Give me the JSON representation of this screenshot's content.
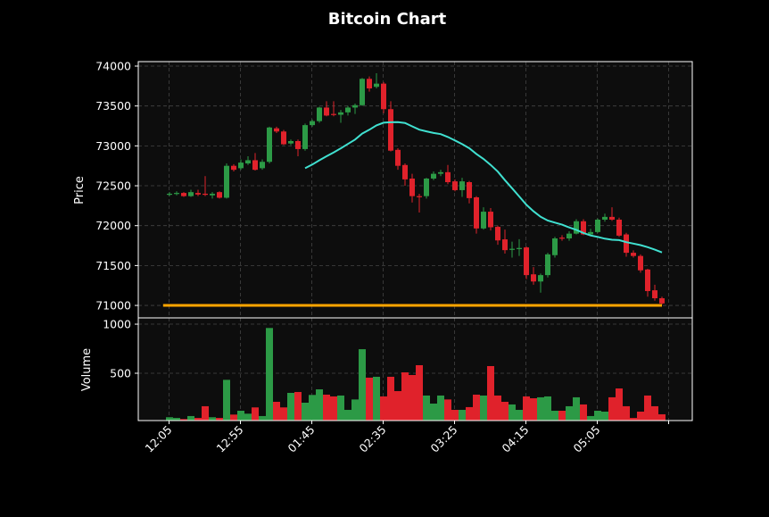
{
  "chart_data": {
    "type": "candlestick",
    "title": "Bitcoin Chart",
    "colors": {
      "up": "#2c9a46",
      "down": "#e0222b",
      "moving_average": "#40e0d0",
      "level_line": "#ffa500",
      "panel_bg": "#0d0d0d",
      "grid": "#444444"
    },
    "price_panel": {
      "ylabel": "Price",
      "ylim": [
        70844,
        74056
      ],
      "yticks": [
        71000,
        71500,
        72000,
        72500,
        73000,
        73500,
        74000
      ],
      "grid": true
    },
    "volume_panel": {
      "ylabel": "Volume",
      "ylim": [
        18,
        1064
      ],
      "yticks": [
        500,
        1000
      ],
      "grid": true
    },
    "x_tick_labels": [
      "12:05",
      "12:55",
      "01:45",
      "02:35",
      "03:25",
      "04:15",
      "05:05",
      ""
    ],
    "moving_average": {
      "period": 20
    },
    "level_line": 71000,
    "candles": [
      [
        72390,
        72420,
        72370,
        72400,
        52
      ],
      [
        72400,
        72430,
        72380,
        72410,
        45
      ],
      [
        72410,
        72420,
        72360,
        72370,
        33
      ],
      [
        72370,
        72450,
        72360,
        72420,
        64
      ],
      [
        72410,
        72450,
        72370,
        72390,
        45
      ],
      [
        72400,
        72620,
        72370,
        72390,
        164
      ],
      [
        72380,
        72420,
        72340,
        72400,
        52
      ],
      [
        72420,
        72430,
        72340,
        72350,
        45
      ],
      [
        72350,
        72780,
        72340,
        72750,
        433
      ],
      [
        72750,
        72770,
        72680,
        72700,
        79
      ],
      [
        72720,
        72830,
        72700,
        72790,
        118
      ],
      [
        72780,
        72870,
        72760,
        72820,
        88
      ],
      [
        72820,
        72910,
        72690,
        72700,
        152
      ],
      [
        72720,
        72830,
        72700,
        72800,
        64
      ],
      [
        72800,
        73240,
        72780,
        73230,
        961
      ],
      [
        73220,
        73240,
        73160,
        73180,
        209
      ],
      [
        73180,
        73200,
        73010,
        73020,
        152
      ],
      [
        73030,
        73080,
        73010,
        73060,
        300
      ],
      [
        73060,
        73080,
        72870,
        72960,
        309
      ],
      [
        72960,
        73280,
        72940,
        73260,
        200
      ],
      [
        73260,
        73330,
        73240,
        73310,
        279
      ],
      [
        73310,
        73490,
        73290,
        73480,
        336
      ],
      [
        73480,
        73560,
        73370,
        73380,
        282
      ],
      [
        73400,
        73560,
        73370,
        73390,
        264
      ],
      [
        73390,
        73450,
        73290,
        73420,
        273
      ],
      [
        73420,
        73500,
        73380,
        73480,
        127
      ],
      [
        73480,
        73530,
        73400,
        73510,
        233
      ],
      [
        73510,
        73850,
        73500,
        73840,
        745
      ],
      [
        73840,
        73870,
        73680,
        73720,
        455
      ],
      [
        73740,
        73910,
        73720,
        73780,
        464
      ],
      [
        73780,
        73800,
        73410,
        73460,
        264
      ],
      [
        73460,
        73560,
        72930,
        72940,
        464
      ],
      [
        72950,
        72970,
        72700,
        72750,
        318
      ],
      [
        72760,
        72780,
        72500,
        72580,
        509
      ],
      [
        72590,
        72650,
        72290,
        72370,
        482
      ],
      [
        72370,
        72400,
        72165,
        72360,
        582
      ],
      [
        72370,
        72600,
        72340,
        72590,
        273
      ],
      [
        72590,
        72680,
        72570,
        72650,
        191
      ],
      [
        72650,
        72700,
        72620,
        72670,
        273
      ],
      [
        72670,
        72760,
        72520,
        72545,
        233
      ],
      [
        72555,
        72580,
        72430,
        72445,
        127
      ],
      [
        72445,
        72600,
        72360,
        72555,
        127
      ],
      [
        72545,
        72560,
        72280,
        72345,
        155
      ],
      [
        72355,
        72370,
        71900,
        71965,
        282
      ],
      [
        71965,
        72230,
        71950,
        72175,
        273
      ],
      [
        72175,
        72220,
        71940,
        71980,
        573
      ],
      [
        71985,
        72000,
        71760,
        71815,
        273
      ],
      [
        71828,
        71950,
        71650,
        71693,
        209
      ],
      [
        71700,
        71800,
        71600,
        71710,
        182
      ],
      [
        71710,
        71830,
        71620,
        71720,
        127
      ],
      [
        71727,
        71740,
        71330,
        71380,
        264
      ],
      [
        71390,
        71480,
        71260,
        71300,
        245
      ],
      [
        71300,
        71400,
        71160,
        71380,
        255
      ],
      [
        71380,
        71660,
        71350,
        71640,
        264
      ],
      [
        71630,
        71860,
        71600,
        71840,
        118
      ],
      [
        71850,
        71880,
        71810,
        71840,
        118
      ],
      [
        71840,
        71930,
        71810,
        71900,
        164
      ],
      [
        71900,
        72080,
        71890,
        72055,
        255
      ],
      [
        72055,
        72080,
        71880,
        71890,
        182
      ],
      [
        71890,
        71960,
        71870,
        71920,
        64
      ],
      [
        71920,
        72090,
        71910,
        72075,
        118
      ],
      [
        72075,
        72150,
        72050,
        72110,
        109
      ],
      [
        72110,
        72230,
        72060,
        72075,
        255
      ],
      [
        72075,
        72100,
        71860,
        71875,
        345
      ],
      [
        71890,
        71910,
        71610,
        71660,
        164
      ],
      [
        71660,
        71690,
        71600,
        71620,
        45
      ],
      [
        71620,
        71640,
        71410,
        71440,
        109
      ],
      [
        71450,
        71460,
        71110,
        71180,
        273
      ],
      [
        71190,
        71260,
        71060,
        71090,
        164
      ],
      [
        71090,
        71110,
        71010,
        71025,
        82
      ]
    ]
  }
}
